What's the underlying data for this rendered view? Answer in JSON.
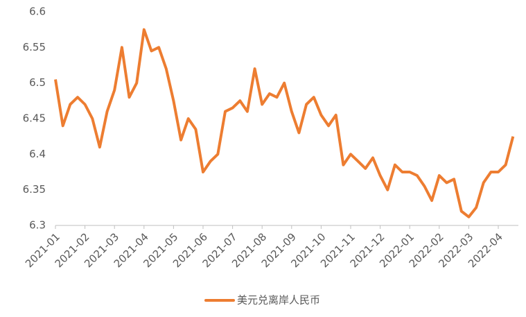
{
  "chart_data": {
    "type": "line",
    "categories": [
      "2021-01",
      null,
      null,
      null,
      "2021-02",
      null,
      null,
      null,
      "2021-03",
      null,
      null,
      null,
      "2021-04",
      null,
      null,
      null,
      "2021-05",
      null,
      null,
      null,
      "2021-06",
      null,
      null,
      null,
      "2021-07",
      null,
      null,
      null,
      "2021-08",
      null,
      null,
      null,
      "2021-09",
      null,
      null,
      null,
      "2021-10",
      null,
      null,
      null,
      "2021-11",
      null,
      null,
      null,
      "2021-12",
      null,
      null,
      null,
      "2022-01",
      null,
      null,
      null,
      "2022-02",
      null,
      null,
      null,
      "2022-03",
      null,
      null,
      null,
      "2022-04",
      null,
      null
    ],
    "series": [
      {
        "name": "美元兑离岸人民币",
        "color": "#ED7D31",
        "values": [
          6.505,
          6.44,
          6.47,
          6.48,
          6.47,
          6.45,
          6.41,
          6.46,
          6.49,
          6.55,
          6.48,
          6.5,
          6.575,
          6.545,
          6.55,
          6.52,
          6.475,
          6.42,
          6.45,
          6.435,
          6.375,
          6.39,
          6.4,
          6.46,
          6.465,
          6.475,
          6.46,
          6.52,
          6.47,
          6.485,
          6.48,
          6.5,
          6.46,
          6.43,
          6.47,
          6.48,
          6.455,
          6.44,
          6.455,
          6.385,
          6.4,
          6.39,
          6.38,
          6.395,
          6.37,
          6.35,
          6.385,
          6.375,
          6.375,
          6.37,
          6.355,
          6.335,
          6.37,
          6.36,
          6.365,
          6.32,
          6.312,
          6.325,
          6.36,
          6.375,
          6.375,
          6.385,
          6.425
        ]
      }
    ],
    "ylim": [
      6.3,
      6.6
    ],
    "yticks": [
      6.3,
      6.35,
      6.4,
      6.45,
      6.5,
      6.55,
      6.6
    ],
    "grid": false,
    "legend": "bottom"
  }
}
